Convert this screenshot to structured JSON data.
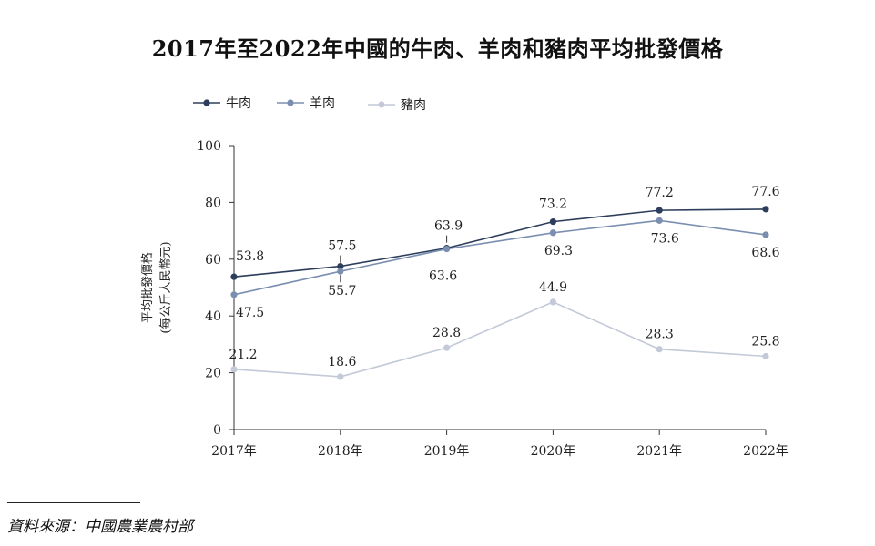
{
  "title": "2017年至2022年中國的牛肉、羊肉和豬肉平均批發價格",
  "source": "資料來源：中國農業農村部",
  "chart_data": {
    "type": "line",
    "categories": [
      "2017年",
      "2018年",
      "2019年",
      "2020年",
      "2021年",
      "2022年"
    ],
    "series": [
      {
        "name": "牛肉",
        "color": "#2d3e5c",
        "values": [
          53.8,
          57.5,
          63.9,
          73.2,
          77.2,
          77.6
        ]
      },
      {
        "name": "羊肉",
        "color": "#7a8fb0",
        "values": [
          47.5,
          55.7,
          63.6,
          69.3,
          73.6,
          68.6
        ]
      },
      {
        "name": "豬肉",
        "color": "#c3c9d8",
        "values": [
          21.2,
          18.6,
          28.8,
          44.9,
          28.3,
          25.8
        ]
      }
    ],
    "data_labels": [
      [
        "53.8",
        "57.5",
        "63.9",
        "73.2",
        "77.2",
        "77.6"
      ],
      [
        "47.5",
        "55.7",
        "63.6",
        "69.3",
        "73.6",
        "68.6"
      ],
      [
        "21.2",
        "18.6",
        "28.8",
        "44.9",
        "28.3",
        "25.8"
      ]
    ],
    "ylabel": "平均批發價格",
    "ylabel_unit": "(每公斤人民幣元)",
    "ylim": [
      0,
      100
    ],
    "yticks": [
      0,
      20,
      40,
      60,
      80,
      100
    ],
    "legend_position": "top-left",
    "grid": false
  }
}
